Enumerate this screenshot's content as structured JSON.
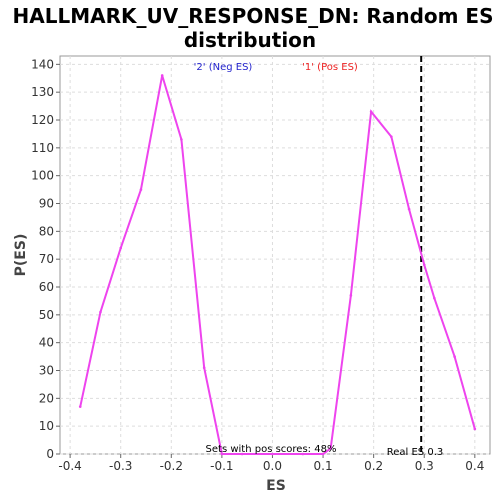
{
  "chart_data": {
    "type": "line",
    "title": [
      "HALLMARK_UV_RESPONSE_DN: Random ES",
      "distribution"
    ],
    "xlabel": "ES",
    "ylabel": "P(ES)",
    "xlim": [
      -0.42,
      0.43
    ],
    "ylim": [
      0,
      143
    ],
    "xticks": [
      -0.4,
      -0.3,
      -0.2,
      -0.1,
      0.0,
      0.1,
      0.2,
      0.3,
      0.4
    ],
    "xtick_labels": [
      "-0.4",
      "-0.3",
      "-0.2",
      "-0.1",
      "0.0",
      "0.1",
      "0.2",
      "0.3",
      "0.4"
    ],
    "yticks": [
      0,
      10,
      20,
      30,
      40,
      50,
      60,
      70,
      80,
      90,
      100,
      110,
      120,
      130,
      140
    ],
    "ytick_labels": [
      "0",
      "10",
      "20",
      "30",
      "40",
      "50",
      "60",
      "70",
      "80",
      "90",
      "100",
      "110",
      "120",
      "130",
      "140"
    ],
    "grid": true,
    "series": [
      {
        "name": "",
        "color": "#ee44ee",
        "x": [
          -0.38,
          -0.34,
          -0.3,
          -0.26,
          -0.218,
          -0.18,
          -0.135,
          -0.1,
          -0.06,
          0.0,
          0.06,
          0.1,
          0.115,
          0.155,
          0.195,
          0.235,
          0.27,
          0.3,
          0.32,
          0.36,
          0.4
        ],
        "y": [
          17,
          51,
          74,
          95,
          136,
          113,
          31,
          0,
          0,
          0,
          0,
          0,
          2,
          57,
          123,
          114,
          88,
          68,
          56,
          35,
          9
        ]
      }
    ],
    "legend": [
      {
        "label": "'2' (Neg ES)",
        "color": "#2222cc"
      },
      {
        "label": "'1' (Pos ES)",
        "color": "#ee2222"
      }
    ],
    "reference_line": {
      "x": 0.294,
      "style": "dashed",
      "color": "#000000",
      "label": "Real ES 0.3"
    },
    "annotation": "Sets with pos scores: 48%"
  }
}
